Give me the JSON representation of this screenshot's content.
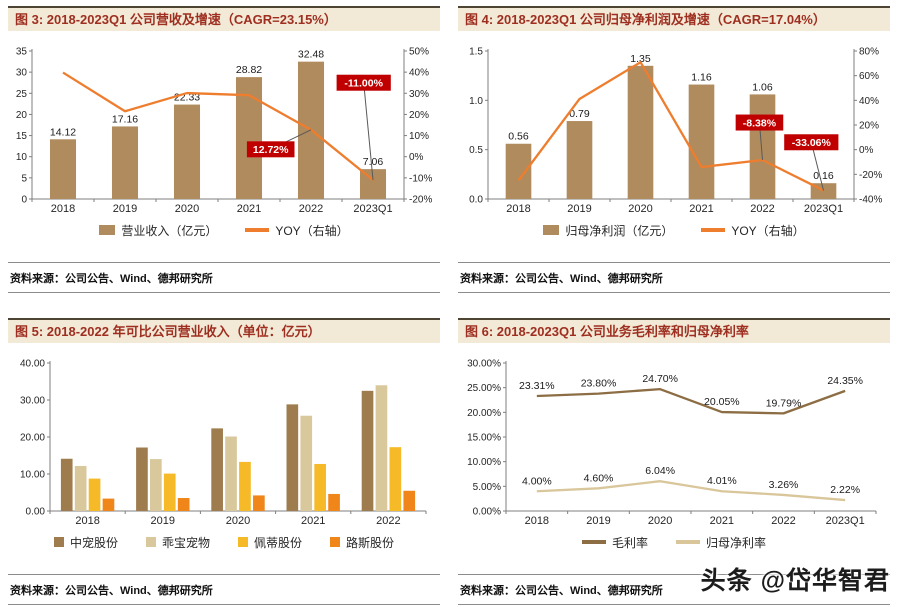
{
  "watermark": "头条 @岱华智君",
  "chart_data": [
    {
      "id": "figure-3",
      "type": "bar-line",
      "title": "图 3: 2018-2023Q1 公司营收及增速（CAGR=23.15%）",
      "source": "资料来源：公司公告、Wind、德邦研究所",
      "categories": [
        "2018",
        "2019",
        "2020",
        "2021",
        "2022",
        "2023Q1"
      ],
      "left_axis": {
        "min": 0,
        "max": 35,
        "step": 5,
        "format": "int"
      },
      "right_axis": {
        "min": -20,
        "max": 50,
        "step": 10,
        "format": "pct0"
      },
      "legend_position": "bottom",
      "grid": false,
      "series": [
        {
          "name": "营业收入（亿元）",
          "type": "bar",
          "axis": "left",
          "color": "#B08B5E",
          "values": [
            14.12,
            17.16,
            22.33,
            28.82,
            32.48,
            7.06
          ],
          "show_labels": true,
          "label_format": "dec2"
        },
        {
          "name": "YOY（右轴）",
          "type": "line",
          "axis": "right",
          "color": "#EE7D2E",
          "values": [
            39.8,
            21.5,
            30.1,
            29.1,
            12.72,
            -11.0
          ],
          "show_labels": false
        }
      ],
      "annotations": [
        {
          "text": "12.72%",
          "axis": "right",
          "box_cat": 3.35,
          "box_val": 3.5,
          "point_cat": 4,
          "point_val": 12.72,
          "color": "#C00000"
        },
        {
          "text": "-11.00%",
          "axis": "right",
          "box_cat": 4.85,
          "box_val": 35,
          "point_cat": 5,
          "point_val": -11.0,
          "color": "#C00000"
        }
      ]
    },
    {
      "id": "figure-4",
      "type": "bar-line",
      "title": "图 4: 2018-2023Q1 公司归母净利润及增速（CAGR=17.04%）",
      "source": "资料来源：公司公告、Wind、德邦研究所",
      "categories": [
        "2018",
        "2019",
        "2020",
        "2021",
        "2022",
        "2023Q1"
      ],
      "left_axis": {
        "min": 0,
        "max": 1.5,
        "step": 0.5,
        "format": "dec1"
      },
      "right_axis": {
        "min": -40,
        "max": 80,
        "step": 20,
        "format": "pct0"
      },
      "legend_position": "bottom",
      "grid": false,
      "series": [
        {
          "name": "归母净利润（亿元）",
          "type": "bar",
          "axis": "left",
          "color": "#B08B5E",
          "values": [
            0.56,
            0.79,
            1.35,
            1.16,
            1.06,
            0.16
          ],
          "show_labels": true,
          "label_format": "dec2"
        },
        {
          "name": "YOY（右轴）",
          "type": "line",
          "axis": "right",
          "color": "#EE7D2E",
          "values": [
            -25.0,
            41.1,
            70.9,
            -14.1,
            -8.38,
            -33.06
          ],
          "show_labels": false
        }
      ],
      "annotations": [
        {
          "text": "-8.38%",
          "axis": "right",
          "box_cat": 3.95,
          "box_val": 22,
          "point_cat": 4,
          "point_val": -8.38,
          "color": "#C00000"
        },
        {
          "text": "-33.06%",
          "axis": "right",
          "box_cat": 4.8,
          "box_val": 6,
          "point_cat": 5,
          "point_val": -33.06,
          "color": "#C00000"
        }
      ]
    },
    {
      "id": "figure-5",
      "type": "grouped-bar",
      "title": "图 5: 2018-2022 年可比公司营业收入（单位：亿元）",
      "source": "资料来源：公司公告、Wind、德邦研究所",
      "categories": [
        "2018",
        "2019",
        "2020",
        "2021",
        "2022"
      ],
      "left_axis": {
        "min": 0,
        "max": 40,
        "step": 10,
        "format": "dec2"
      },
      "legend_position": "bottom",
      "grid": false,
      "series": [
        {
          "name": "中宠股份",
          "type": "bar",
          "axis": "left",
          "color": "#9F7C4D",
          "values": [
            14.12,
            17.16,
            22.33,
            28.82,
            32.48
          ],
          "show_labels": false
        },
        {
          "name": "乖宝宠物",
          "type": "bar",
          "axis": "left",
          "color": "#D8C89C",
          "values": [
            12.17,
            14.03,
            20.13,
            25.75,
            33.98
          ],
          "show_labels": false
        },
        {
          "name": "佩蒂股份",
          "type": "bar",
          "axis": "left",
          "color": "#F6B928",
          "values": [
            8.76,
            10.11,
            13.27,
            12.71,
            17.25
          ],
          "show_labels": false
        },
        {
          "name": "路斯股份",
          "type": "bar",
          "axis": "left",
          "color": "#F08519",
          "values": [
            3.35,
            3.51,
            4.21,
            4.61,
            5.47
          ],
          "show_labels": false
        }
      ]
    },
    {
      "id": "figure-6",
      "type": "multi-line",
      "title": "图 6: 2018-2023Q1 公司业务毛利率和归母净利率",
      "source": "资料来源：公司公告、Wind、德邦研究所",
      "categories": [
        "2018",
        "2019",
        "2020",
        "2021",
        "2022",
        "2023Q1"
      ],
      "left_axis": {
        "min": 0,
        "max": 30,
        "step": 5,
        "format": "pct2"
      },
      "legend_position": "bottom",
      "grid": false,
      "series": [
        {
          "name": "毛利率",
          "type": "line",
          "axis": "left",
          "color": "#8C6D44",
          "values": [
            23.31,
            23.8,
            24.7,
            20.05,
            19.79,
            24.35
          ],
          "show_labels": true,
          "label_format": "pct2"
        },
        {
          "name": "归母净利率",
          "type": "line",
          "axis": "left",
          "color": "#D9C79B",
          "values": [
            4.0,
            4.6,
            6.04,
            4.01,
            3.26,
            2.22
          ],
          "show_labels": true,
          "label_format": "pct2"
        }
      ]
    }
  ]
}
